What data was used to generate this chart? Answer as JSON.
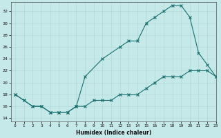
{
  "bg_color": "#c5e8e8",
  "grid_color": "#b0d4d4",
  "line_color": "#1a7070",
  "xlabel": "Humidex (Indice chaleur)",
  "xlim": [
    -0.5,
    23
  ],
  "ylim": [
    13.5,
    33.5
  ],
  "xticks": [
    0,
    1,
    2,
    3,
    4,
    5,
    6,
    7,
    8,
    9,
    10,
    11,
    12,
    13,
    14,
    15,
    16,
    17,
    18,
    19,
    20,
    21,
    22,
    23
  ],
  "yticks": [
    14,
    16,
    18,
    20,
    22,
    24,
    26,
    28,
    30,
    32
  ],
  "series": [
    {
      "x": [
        0,
        1,
        2,
        3,
        4,
        5,
        6,
        7
      ],
      "y": [
        18,
        17,
        16,
        16,
        15,
        15,
        15,
        16
      ]
    },
    {
      "x": [
        7,
        8,
        10,
        12,
        13,
        14,
        15,
        16,
        17,
        18,
        19,
        20,
        21,
        22,
        23
      ],
      "y": [
        16,
        21,
        24,
        26,
        27,
        27,
        30,
        31,
        32,
        33,
        33,
        31,
        25,
        23,
        21
      ]
    },
    {
      "x": [
        0,
        1,
        2,
        3,
        4,
        5,
        6,
        7,
        8,
        9,
        10,
        11,
        12,
        13,
        14,
        15,
        16,
        17,
        18,
        19,
        20,
        21,
        22,
        23
      ],
      "y": [
        18,
        17,
        16,
        16,
        15,
        15,
        15,
        16,
        16,
        17,
        17,
        17,
        18,
        18,
        18,
        19,
        20,
        21,
        21,
        21,
        22,
        22,
        22,
        21
      ]
    }
  ]
}
